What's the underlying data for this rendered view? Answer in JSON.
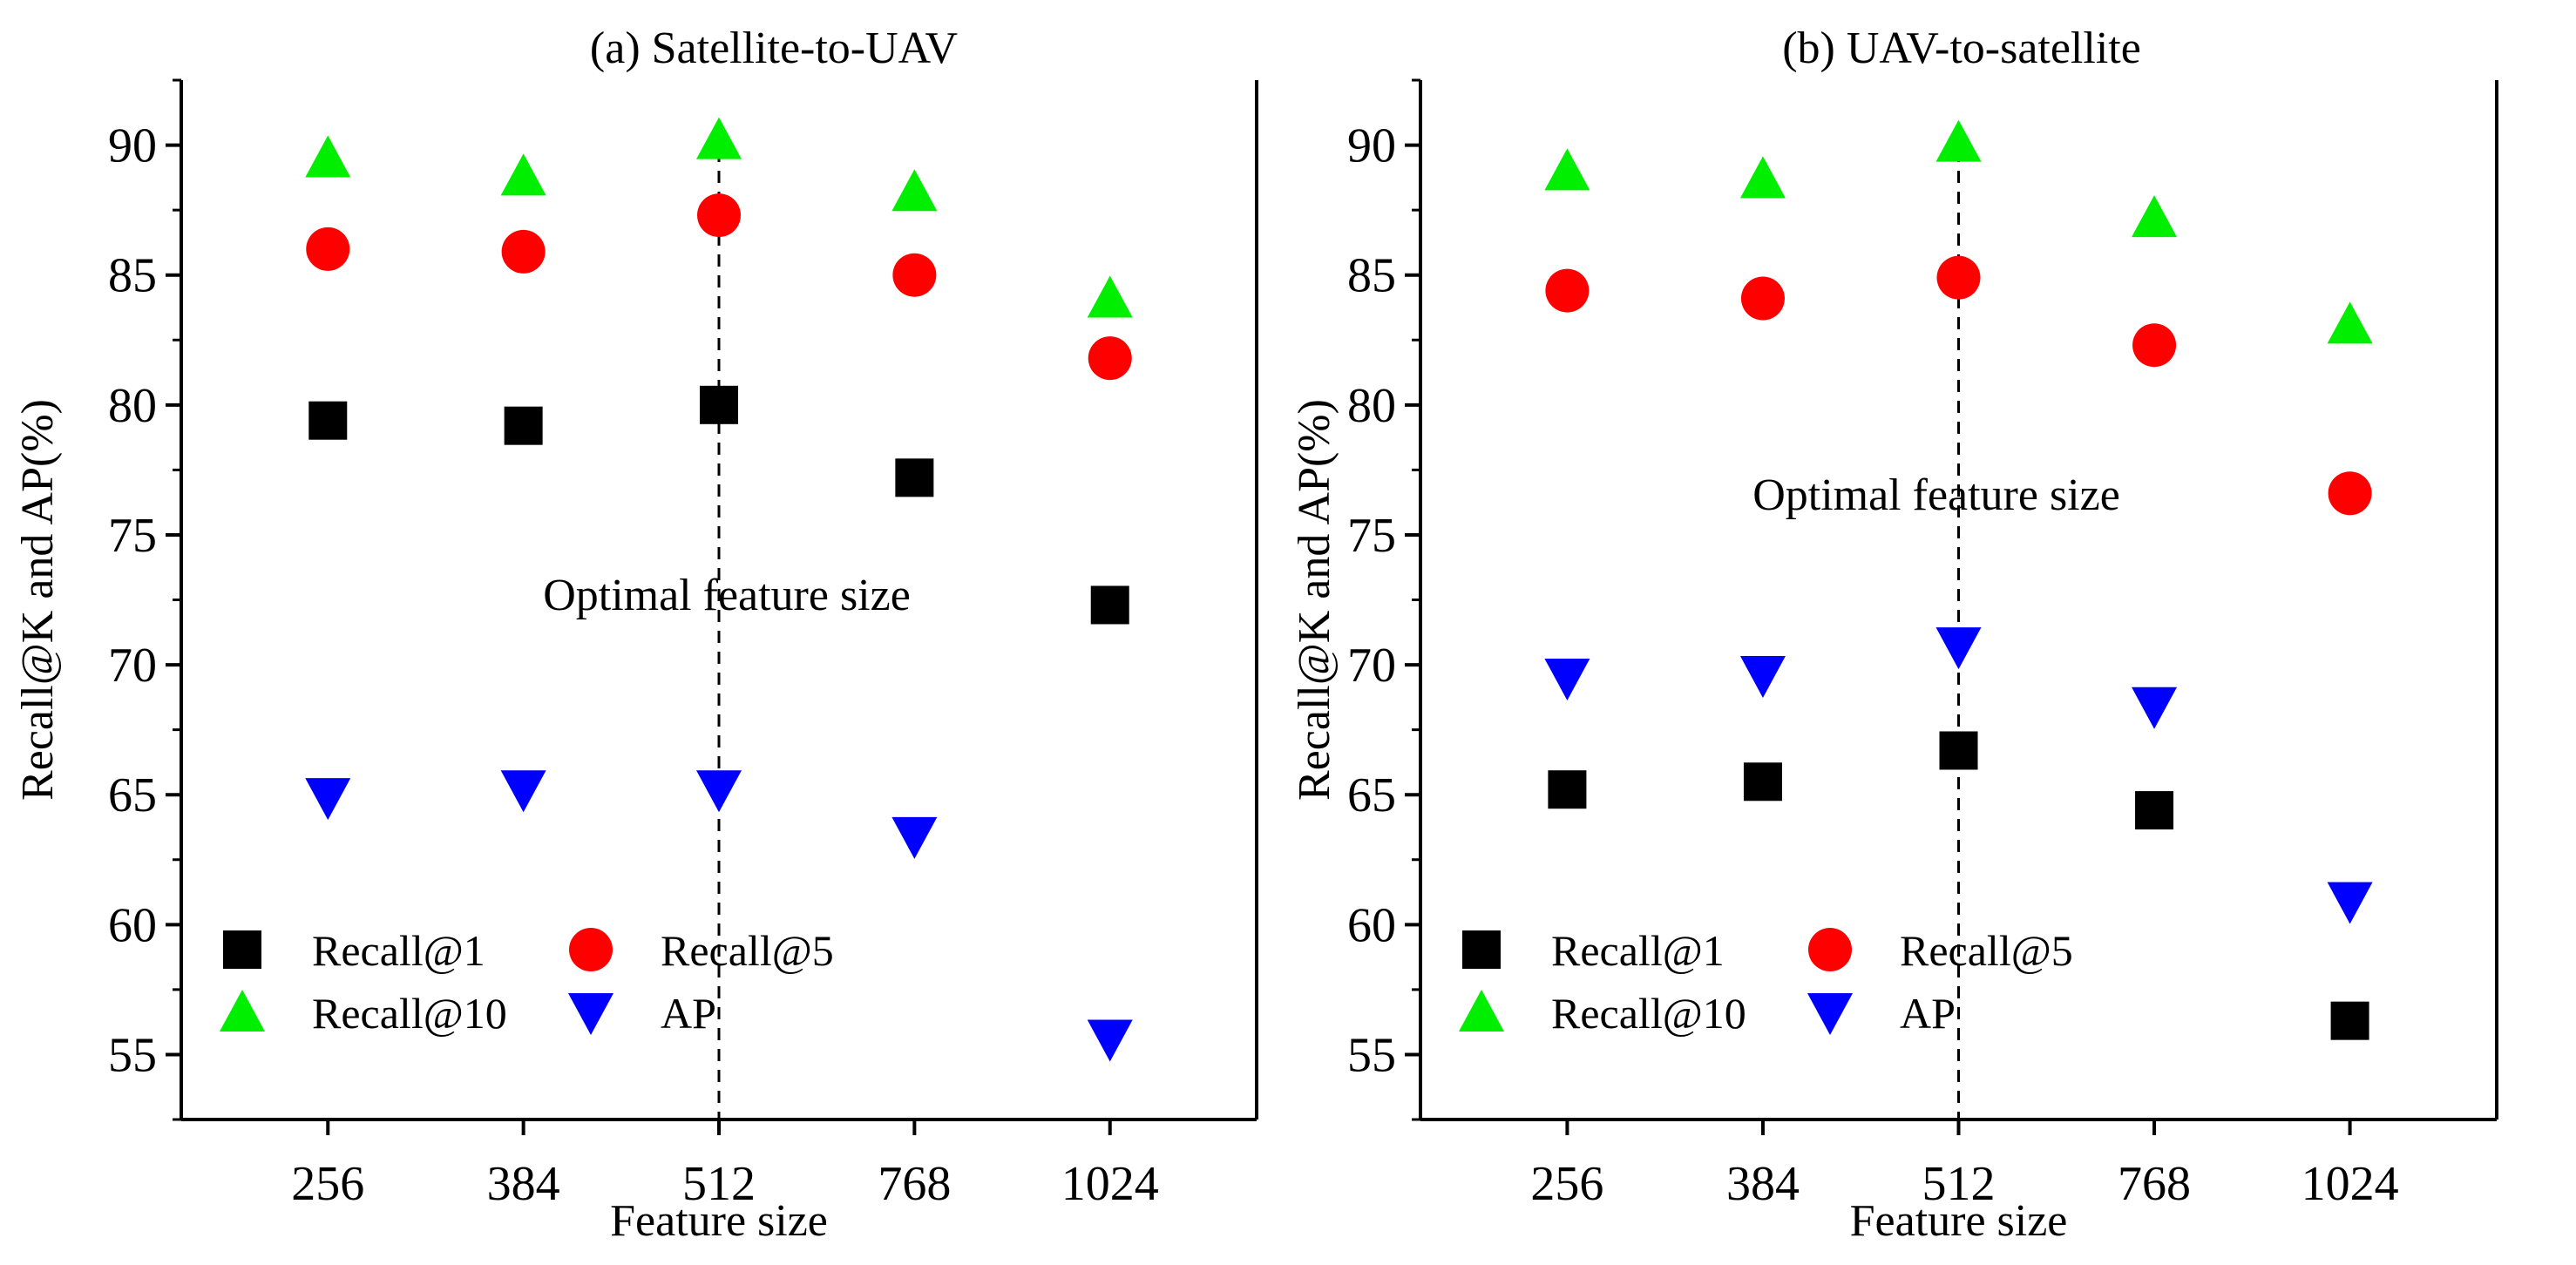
{
  "figure": {
    "marker_styles": {
      "Recall@1": {
        "shape": "square",
        "color": "#000000"
      },
      "Recall@5": {
        "shape": "circle",
        "color": "#ff0000"
      },
      "Recall@10": {
        "shape": "triangle-up",
        "color": "#00ee00"
      },
      "AP": {
        "shape": "triangle-down",
        "color": "#0000ff"
      }
    }
  },
  "chart_data": [
    {
      "type": "scatter",
      "title": "(a) Satellite-to-UAV",
      "xlabel": "Feature size",
      "ylabel": "Recall@K and AP(%)",
      "categories": [
        "256",
        "384",
        "512",
        "768",
        "1024"
      ],
      "ylim": [
        52.5,
        92.5
      ],
      "yticks": [
        55,
        60,
        65,
        70,
        75,
        80,
        85,
        90
      ],
      "grid": false,
      "legend_position": "bottom-left",
      "annotation": "Optimal feature size",
      "optimal_category": "512",
      "series": [
        {
          "name": "Recall@1",
          "values": [
            79.4,
            79.2,
            80.0,
            77.2,
            72.3
          ]
        },
        {
          "name": "Recall@5",
          "values": [
            86.0,
            85.9,
            87.3,
            85.0,
            81.8
          ]
        },
        {
          "name": "Recall@10",
          "values": [
            89.5,
            88.8,
            90.2,
            88.2,
            84.1
          ]
        },
        {
          "name": "AP",
          "values": [
            64.9,
            65.2,
            65.2,
            63.4,
            55.6
          ]
        }
      ]
    },
    {
      "type": "scatter",
      "title": "(b) UAV-to-satellite",
      "xlabel": "Feature size",
      "ylabel": "Recall@K and AP(%)",
      "categories": [
        "256",
        "384",
        "512",
        "768",
        "1024"
      ],
      "ylim": [
        52.5,
        92.5
      ],
      "yticks": [
        55,
        60,
        65,
        70,
        75,
        80,
        85,
        90
      ],
      "grid": false,
      "legend_position": "bottom-left",
      "annotation": "Optimal feature size",
      "optimal_category": "512",
      "series": [
        {
          "name": "Recall@1",
          "values": [
            65.2,
            65.5,
            66.7,
            64.4,
            56.3
          ]
        },
        {
          "name": "Recall@5",
          "values": [
            84.4,
            84.1,
            84.9,
            82.3,
            76.6
          ]
        },
        {
          "name": "Recall@10",
          "values": [
            89.0,
            88.7,
            90.1,
            87.2,
            83.1
          ]
        },
        {
          "name": "AP",
          "values": [
            69.5,
            69.6,
            70.7,
            68.4,
            60.9
          ]
        }
      ]
    }
  ]
}
